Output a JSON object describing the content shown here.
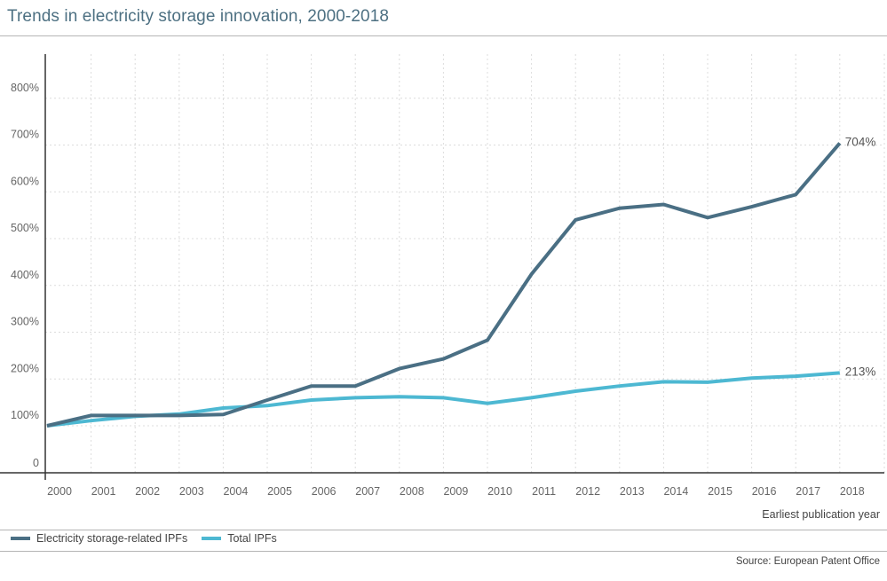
{
  "title": "Trends in electricity storage innovation, 2000-2018",
  "x_axis_title": "Earliest publication year",
  "source": "Source: European Patent Office",
  "chart_data": {
    "type": "line",
    "title": "Trends in electricity storage innovation, 2000-2018",
    "xlabel": "Earliest publication year",
    "ylabel": "",
    "x": [
      "2000",
      "2001",
      "2002",
      "2003",
      "2004",
      "2005",
      "2006",
      "2007",
      "2008",
      "2009",
      "2010",
      "2011",
      "2012",
      "2013",
      "2014",
      "2015",
      "2016",
      "2017",
      "2018"
    ],
    "y_ticks": [
      "0",
      "100%",
      "200%",
      "300%",
      "400%",
      "500%",
      "600%",
      "700%",
      "800%"
    ],
    "ylim": [
      0,
      900
    ],
    "grid": true,
    "legend_position": "bottom-left",
    "series": [
      {
        "name": "Electricity storage-related IPFs",
        "color": "#4a6f84",
        "values": [
          100,
          122,
          122,
          122,
          124,
          155,
          185,
          185,
          222,
          243,
          283,
          424,
          540,
          565,
          573,
          545,
          568,
          594,
          704
        ],
        "end_label": "704%"
      },
      {
        "name": "Total IPFs",
        "color": "#4db8d2",
        "values": [
          100,
          111,
          120,
          125,
          138,
          143,
          155,
          160,
          162,
          160,
          148,
          160,
          174,
          185,
          194,
          193,
          202,
          206,
          213
        ],
        "end_label": "213%"
      }
    ]
  }
}
